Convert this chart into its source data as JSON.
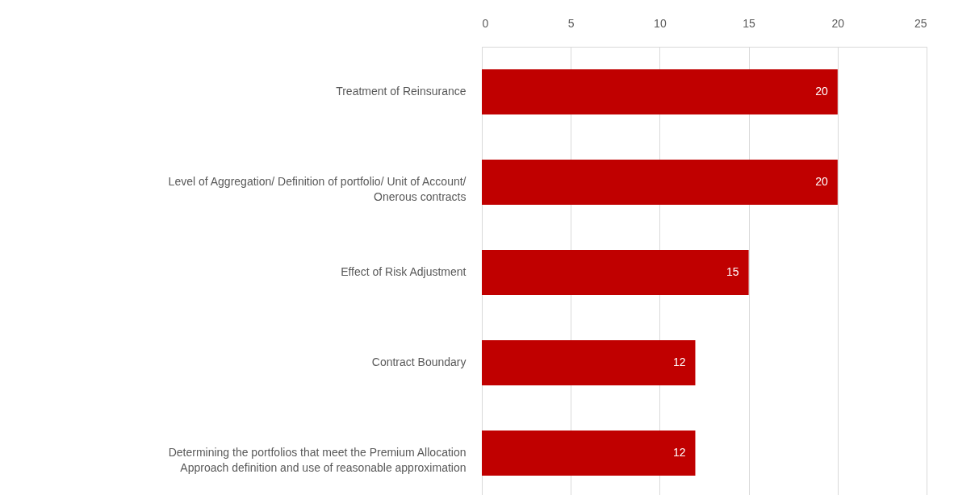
{
  "chart_data": {
    "type": "bar",
    "orientation": "horizontal",
    "categories": [
      "Treatment of Reinsurance",
      "Level of Aggregation/ Definition of portfolio/ Unit of Account/ Onerous contracts",
      "Effect of Risk Adjustment",
      "Contract Boundary",
      "Determining the portfolios that meet the Premium Allocation Approach definition and use of reasonable approximation"
    ],
    "values": [
      20,
      20,
      15,
      12,
      12
    ],
    "color": "#c00000",
    "xlim": [
      0,
      25
    ],
    "xticks": [
      0,
      5,
      10,
      15,
      20,
      25
    ],
    "grid": "x",
    "data_labels": true
  }
}
